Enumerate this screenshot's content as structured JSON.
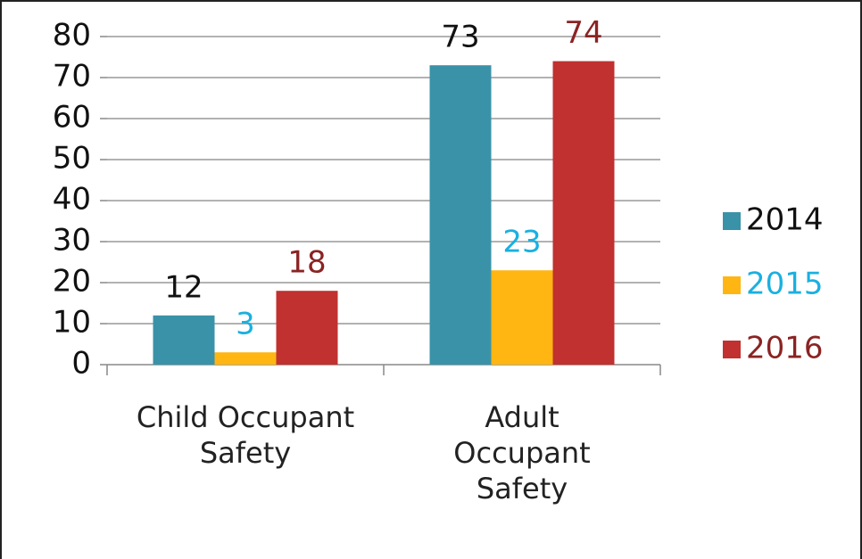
{
  "chart_data": {
    "type": "bar",
    "categories": [
      "Child Occupant Safety",
      "Adult Occupant Safety"
    ],
    "series": [
      {
        "name": "2014",
        "color": "#3a92a8",
        "label_color": "#111111",
        "values": [
          12,
          73
        ]
      },
      {
        "name": "2015",
        "color": "#ffb612",
        "label_color": "#1ab0e0",
        "values": [
          3,
          23
        ]
      },
      {
        "name": "2016",
        "color": "#c0312f",
        "label_color": "#8b2323",
        "values": [
          18,
          74
        ]
      }
    ],
    "ylim": [
      0,
      80
    ],
    "yticks": [
      0,
      10,
      20,
      30,
      40,
      50,
      60,
      70,
      80
    ],
    "grid": true,
    "legend": "right"
  }
}
